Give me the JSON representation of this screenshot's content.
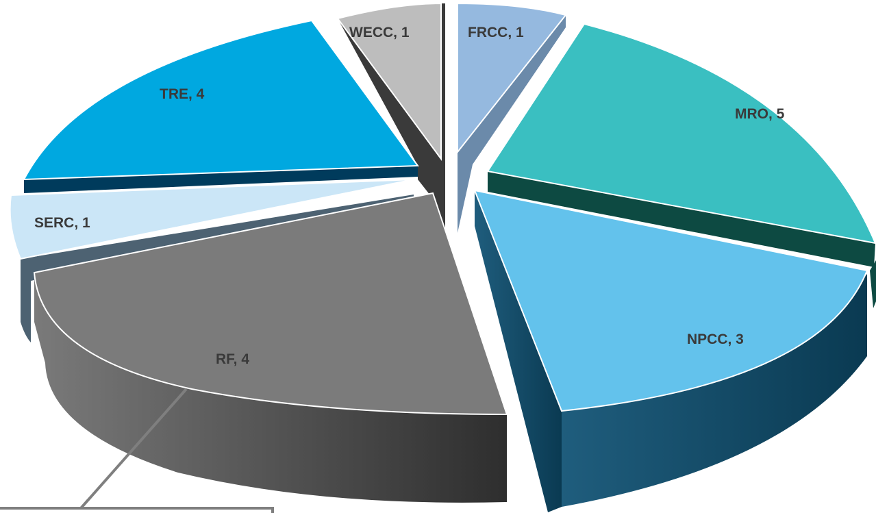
{
  "chart_data": {
    "type": "pie",
    "title": "",
    "style": "3d-exploded",
    "slices": [
      {
        "label": "FRCC",
        "value": 1,
        "text": "FRCC, 1",
        "top": "#95b9df",
        "side": "#6b8aaa"
      },
      {
        "label": "MRO",
        "value": 5,
        "text": "MRO, 5",
        "top": "#3abfc1",
        "side": "#0d4a42"
      },
      {
        "label": "NPCC",
        "value": 3,
        "text": "NPCC, 3",
        "top": "#63c2ec",
        "side": "#0c4a66"
      },
      {
        "label": "RF",
        "value": 4,
        "text": "RF, 4",
        "top": "#7b7b7b",
        "side": "#3f3f3f"
      },
      {
        "label": "SERC",
        "value": 1,
        "text": "SERC, 1",
        "top": "#cbe6f7",
        "side": "#4d6272"
      },
      {
        "label": "TRE",
        "value": 4,
        "text": "TRE, 4",
        "top": "#00a8e0",
        "side": "#003b5c"
      },
      {
        "label": "WECC",
        "value": 1,
        "text": "WECC, 1",
        "top": "#bdbdbd",
        "side": "#3a3a3a"
      }
    ]
  }
}
